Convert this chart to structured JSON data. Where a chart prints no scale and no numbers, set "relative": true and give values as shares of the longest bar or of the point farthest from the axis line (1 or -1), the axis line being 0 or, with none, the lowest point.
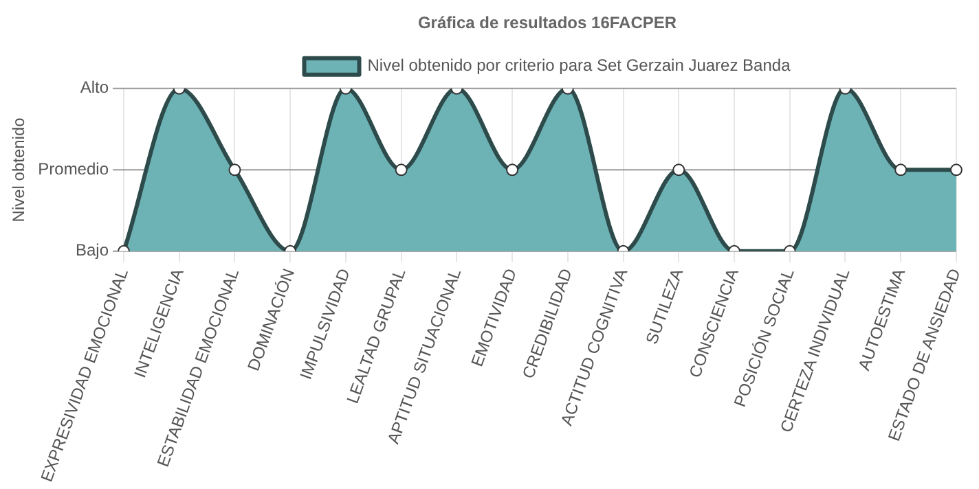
{
  "chart_data": {
    "type": "area",
    "title": "Gráfica de resultados 16FACPER",
    "ylabel": "Nivel obtenido",
    "categories": [
      "EXPRESIVIDAD EMOCIONAL",
      "INTELIGENCIA",
      "ESTABILIDAD EMOCIONAL",
      "DOMINACIÓN",
      "IMPULSIVIDAD",
      "LEALTAD GRUPAL",
      "APTITUD SITUACIONAL",
      "EMOTIVIDAD",
      "CREDIBILIDAD",
      "ACTITUD COGNITIVA",
      "SUTILEZA",
      "CONSCIENCIA",
      "POSICIÓN SOCIAL",
      "CERTEZA INDIVIDUAL",
      "AUTOESTIMA",
      "ESTADO DE ANSIEDAD"
    ],
    "series": [
      {
        "name": "Nivel obtenido por criterio para Set Gerzain Juarez Banda",
        "color": "#6db3b6",
        "values": [
          0,
          1,
          0.5,
          0,
          1,
          0.5,
          1,
          0.5,
          1,
          0,
          0.5,
          0,
          0,
          1,
          0.5,
          0.5
        ]
      }
    ],
    "relative": true,
    "ref_lines": [
      {
        "axis": "y",
        "value": 0,
        "label": "Bajo",
        "color": "#999999"
      },
      {
        "axis": "y",
        "value": 0.5,
        "label": "Promedio",
        "color": "#999999"
      },
      {
        "axis": "y",
        "value": 1,
        "label": "Alto",
        "color": "#999999"
      }
    ],
    "grid": "x",
    "legend": "top",
    "marker": "circle"
  }
}
